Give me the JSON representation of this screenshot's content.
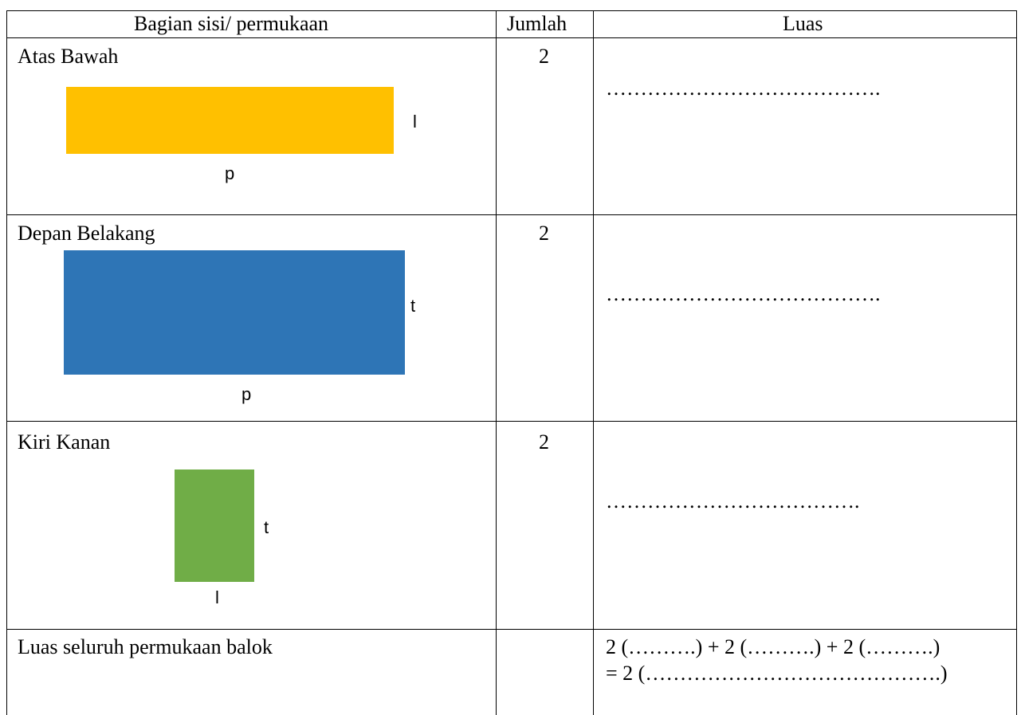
{
  "table": {
    "headers": {
      "bagian": "Bagian sisi/ permukaan",
      "jumlah": "Jumlah",
      "luas": "Luas"
    },
    "rows": [
      {
        "label": "Atas Bawah",
        "count": "2",
        "area": "………………………………….",
        "shape": {
          "color": "#FFC000",
          "side_label_1": "l",
          "bottom_label": "p"
        }
      },
      {
        "label": "Depan Belakang",
        "count": "2",
        "area": "………………………………….",
        "shape": {
          "color": "#2E75B6",
          "side_label_1": "t",
          "bottom_label": "p"
        }
      },
      {
        "label": "Kiri Kanan",
        "count": "2",
        "area": "……………………………….",
        "shape": {
          "color": "#70AD47",
          "side_label_1": "t",
          "bottom_label": "l"
        }
      }
    ],
    "total": {
      "label": "Luas seluruh permukaan balok",
      "count": "",
      "line1": "2 (……….) + 2 (……….) + 2 (……….)",
      "line2": "= 2 (…………………………………….)"
    }
  }
}
